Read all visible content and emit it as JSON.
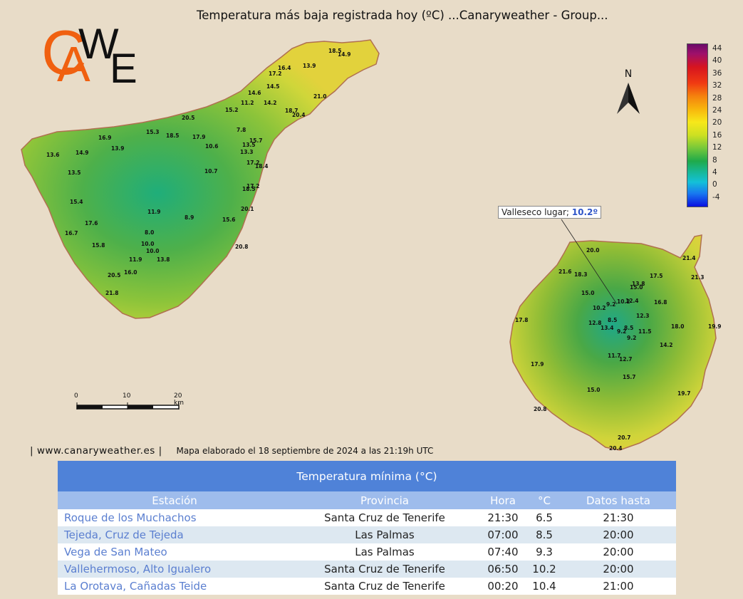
{
  "title": "Temperatura más baja registrada hoy (ºC)    ...Canaryweather - Group...",
  "logo": {
    "l1": "C",
    "l2": "A",
    "l3": "W",
    "l4": "E"
  },
  "legend": {
    "ticks": [
      "44",
      "40",
      "36",
      "32",
      "28",
      "24",
      "20",
      "16",
      "12",
      "8",
      "4",
      "0",
      "-4"
    ]
  },
  "north": "N",
  "scale": {
    "t0": "0",
    "t1": "10",
    "t2": "20 km"
  },
  "callout": {
    "station": "Valleseco lugar; ",
    "value": "10.2º"
  },
  "tenerife_labels": [
    "18.5",
    "14.9",
    "16.4",
    "13.9",
    "17.2",
    "14.5",
    "21.0",
    "14.6",
    "11.2",
    "14.2",
    "18.7",
    "20.4",
    "15.2",
    "20.5",
    "7.8",
    "15.3",
    "18.5",
    "17.9",
    "15.7",
    "16.9",
    "13.9",
    "10.6",
    "13.5",
    "13.3",
    "13.6",
    "14.9",
    "17.2",
    "18.4",
    "13.5",
    "10.7",
    "17.2",
    "18.5",
    "15.4",
    "20.1",
    "11.9",
    "8.9",
    "15.6",
    "17.6",
    "16.7",
    "8.0",
    "15.8",
    "10.0",
    "20.8",
    "10.0",
    "11.9",
    "13.8",
    "16.0",
    "20.5",
    "21.8"
  ],
  "grancanaria_labels": [
    "20.0",
    "21.4",
    "21.6",
    "18.3",
    "17.5",
    "21.3",
    "13.8",
    "15.0",
    "15.0",
    "16.8",
    "9.2",
    "10.2",
    "12.4",
    "10.2",
    "12.3",
    "8.5",
    "17.8",
    "12.8",
    "13.4",
    "9.2",
    "8.5",
    "11.5",
    "18.0",
    "19.9",
    "9.2",
    "14.2",
    "11.7",
    "12.7",
    "17.9",
    "15.7",
    "15.0",
    "19.7",
    "20.8",
    "20.7",
    "20.4"
  ],
  "footer": {
    "site": "| www.canaryweather.es |",
    "note": "Mapa elaborado el 18 septiembre de 2024 a las 21:19h UTC"
  },
  "table": {
    "title": "Temperatura mínima (°C)",
    "headers": [
      "Estación",
      "Provincia",
      "Hora",
      "°C",
      "Datos hasta"
    ],
    "rows": [
      [
        "Roque de los Muchachos",
        "Santa Cruz de Tenerife",
        "21:30",
        "6.5",
        "21:30"
      ],
      [
        "Tejeda, Cruz de Tejeda",
        "Las Palmas",
        "07:00",
        "8.5",
        "20:00"
      ],
      [
        "Vega de San Mateo",
        "Las Palmas",
        "07:40",
        "9.3",
        "20:00"
      ],
      [
        "Vallehermoso, Alto Igualero",
        "Santa Cruz de Tenerife",
        "06:50",
        "10.2",
        "20:00"
      ],
      [
        "La Orotava, Cañadas Teide",
        "Santa Cruz de Tenerife",
        "00:20",
        "10.4",
        "21:00"
      ]
    ]
  },
  "colors": {
    "header_blue": "#4f82d8",
    "subheader_blue": "#9ebcec",
    "link_blue": "#5b7fd0",
    "bg": "#e8dcc8",
    "logo_orange": "#f06010"
  }
}
